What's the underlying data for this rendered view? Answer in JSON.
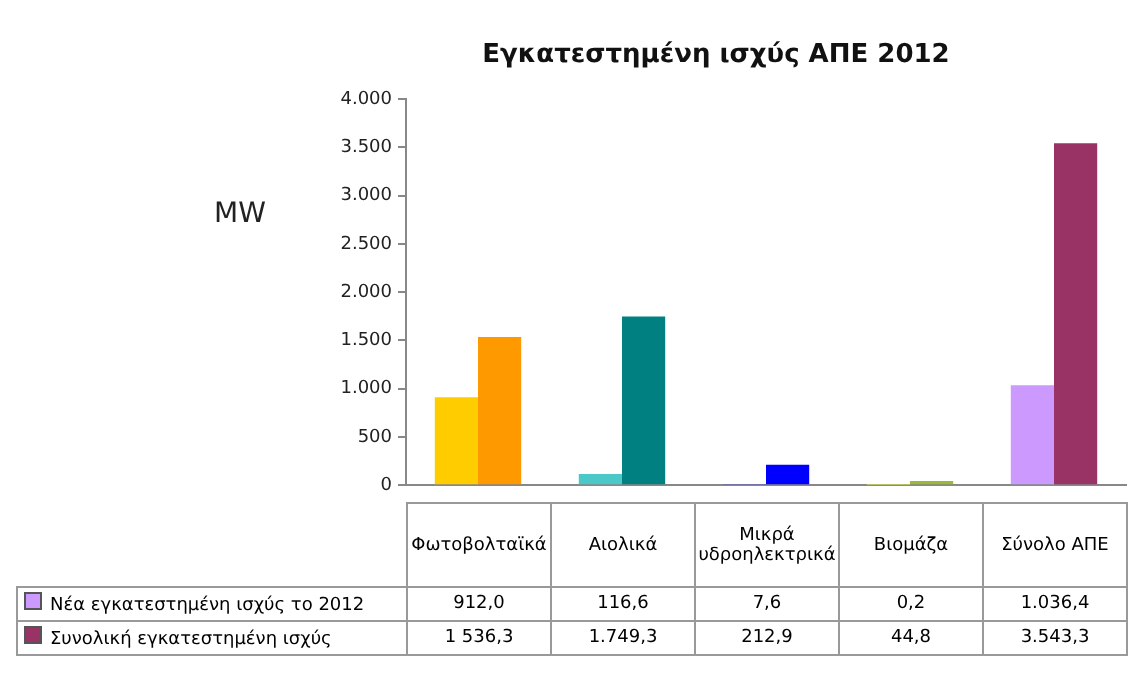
{
  "chart_data": {
    "type": "bar",
    "title": "Εγκατεστημένη ισχύς ΑΠΕ 2012",
    "ylabel": "MW",
    "categories": [
      "Φωτοβολταϊκά",
      "Αιολικά",
      "Μικρά υδροηλεκτρικά",
      "Βιομάζα",
      "Σύνολο ΑΠΕ"
    ],
    "series": [
      {
        "name": "Νέα εγκατεστημένη ισχύς το 2012",
        "color": "#cc99ff",
        "colors": [
          "#ffcc00",
          "#4bc8c8",
          "#3333ff",
          "#c8d060",
          "#cc99ff"
        ],
        "values": [
          912.0,
          116.6,
          7.6,
          0.2,
          1036.4
        ],
        "value_labels": [
          "912,0",
          "116,6",
          "7,6",
          "0,2",
          "1.036,4"
        ]
      },
      {
        "name": "Συνολική εγκατεστημένη ισχύς",
        "color": "#993366",
        "colors": [
          "#ff9900",
          "#008080",
          "#0000ff",
          "#99bb33",
          "#993366"
        ],
        "values": [
          1536.3,
          1749.3,
          212.9,
          44.8,
          3543.3
        ],
        "value_labels": [
          "1 536,3",
          "1.749,3",
          "212,9",
          "44,8",
          "3.543,3"
        ]
      }
    ],
    "ylim": [
      0,
      4000
    ],
    "yticks": [
      {
        "value": 0,
        "label": "0"
      },
      {
        "value": 500,
        "label": "500"
      },
      {
        "value": 1000,
        "label": "1.000"
      },
      {
        "value": 1500,
        "label": "1.500"
      },
      {
        "value": 2000,
        "label": "2.000"
      },
      {
        "value": 2500,
        "label": "2.500"
      },
      {
        "value": 3000,
        "label": "3.000"
      },
      {
        "value": 3500,
        "label": "3.500"
      },
      {
        "value": 4000,
        "label": "4.000"
      }
    ],
    "grid": false,
    "legend": "bottom"
  }
}
